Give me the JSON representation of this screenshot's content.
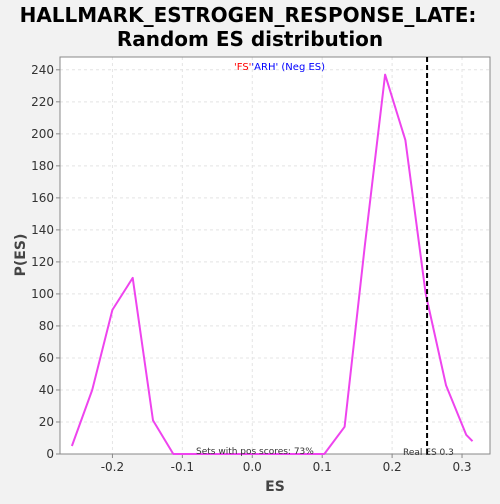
{
  "chart_data": {
    "type": "line",
    "title_line1": "HALLMARK_ESTROGEN_RESPONSE_LATE:",
    "title_line2": "Random ES distribution",
    "xlabel": "ES",
    "ylabel": "P(ES)",
    "xlim": [
      -0.275,
      0.34
    ],
    "ylim": [
      0,
      248
    ],
    "x_ticks": [
      -0.2,
      -0.1,
      0.0,
      0.1,
      0.2,
      0.3
    ],
    "x_tick_labels": [
      "-0.2",
      "-0.1",
      "0.0",
      "0.1",
      "0.2",
      "0.3"
    ],
    "y_ticks": [
      0,
      20,
      40,
      60,
      80,
      100,
      120,
      140,
      160,
      180,
      200,
      220,
      240
    ],
    "y_tick_labels": [
      "0",
      "20",
      "40",
      "60",
      "80",
      "100",
      "120",
      "140",
      "160",
      "180",
      "200",
      "220",
      "240"
    ],
    "grid": true,
    "series": [
      {
        "color": "#ee44ee",
        "x": [
          -0.258,
          -0.229,
          -0.2,
          -0.171,
          -0.142,
          -0.113,
          -0.084,
          -0.055,
          -0.026,
          0.003,
          0.032,
          0.061,
          0.09,
          0.103,
          0.132,
          0.161,
          0.19,
          0.219,
          0.248,
          0.277,
          0.306,
          0.315
        ],
        "y": [
          5,
          40,
          90,
          110,
          21,
          0,
          0,
          0,
          0,
          0,
          0,
          0,
          0,
          0,
          17,
          130,
          237,
          196,
          100,
          43,
          12,
          8
        ]
      }
    ],
    "real_es": 0.25,
    "real_es_label": "Real ES 0.3",
    "pos_scores_label": "Sets with pos scores: 73%",
    "legend": {
      "part1": "'FS'",
      "part1_color": "#ff0000",
      "part2": "'ARH' (Neg ES)",
      "part2_color": "#0000ff"
    },
    "colors": {
      "background": "#f2f2f2",
      "plot_background": "#ffffff",
      "grid": "#e4e4e4",
      "line": "#ee44ee",
      "real_es_line": "#000000"
    }
  }
}
